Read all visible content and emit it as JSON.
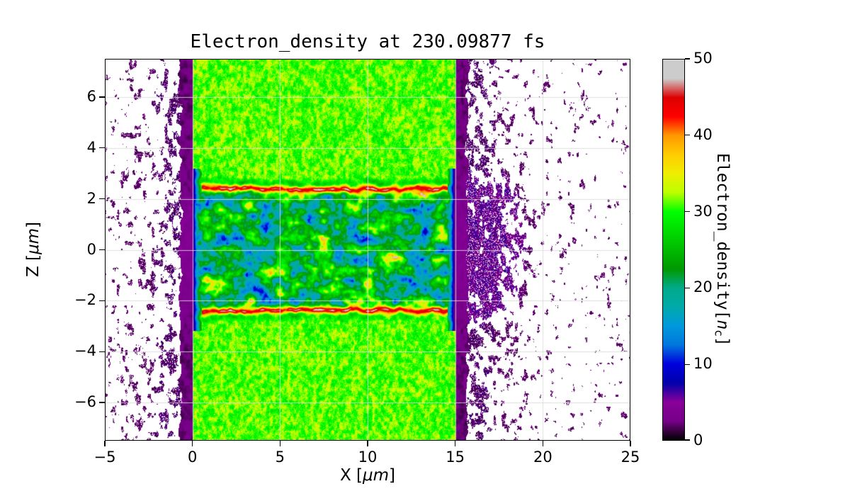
{
  "figure": {
    "title": "Electron_density at 230.09877 fs",
    "xlabel": {
      "pre": "X [",
      "unit": "μm",
      "post": "]"
    },
    "ylabel": {
      "pre": "Z [",
      "unit": "μm",
      "post": "]"
    },
    "xtick_labels": [
      "−5",
      "0",
      "5",
      "10",
      "15",
      "20",
      "25"
    ],
    "ytick_labels": [
      "6",
      "4",
      "2",
      "0",
      "−2",
      "−4",
      "−6"
    ],
    "colorbar_tick_labels": [
      "0",
      "10",
      "20",
      "30",
      "40",
      "50"
    ],
    "colorbar_label": {
      "pre": "Electron_density[",
      "sym": "n",
      "sub": "c",
      "post": "]"
    }
  },
  "chart_data": {
    "type": "heatmap",
    "title": "Electron_density at 230.09877 fs",
    "xlabel": "X [μm]",
    "ylabel": "Z [μm]",
    "xlim": [
      -5,
      25
    ],
    "ylim": [
      -7.5,
      7.5
    ],
    "xticks": [
      -5,
      0,
      5,
      10,
      15,
      20,
      25
    ],
    "yticks": [
      6,
      4,
      2,
      0,
      -2,
      -4,
      -6
    ],
    "grid": true,
    "grid_color": "#d9d9d9",
    "colorbar": {
      "label": "Electron_density[n_c]",
      "ticks": [
        0,
        10,
        20,
        30,
        40,
        50
      ],
      "vmin": 0,
      "vmax": 50
    },
    "colormap": {
      "name": "nipy_spectral (approx)",
      "stops": [
        [
          0,
          "#000000"
        ],
        [
          0.05,
          "#770088"
        ],
        [
          0.1,
          "#880099"
        ],
        [
          0.15,
          "#0000aa"
        ],
        [
          0.2,
          "#0000dd"
        ],
        [
          0.25,
          "#0077dd"
        ],
        [
          0.3,
          "#0099dd"
        ],
        [
          0.35,
          "#00aaaa"
        ],
        [
          0.4,
          "#00aa88"
        ],
        [
          0.45,
          "#009900"
        ],
        [
          0.5,
          "#00bb00"
        ],
        [
          0.55,
          "#00dd00"
        ],
        [
          0.6,
          "#00ff00"
        ],
        [
          0.65,
          "#bbff00"
        ],
        [
          0.7,
          "#eeee00"
        ],
        [
          0.75,
          "#ffcc00"
        ],
        [
          0.8,
          "#ff9900"
        ],
        [
          0.85,
          "#ff0000"
        ],
        [
          0.9,
          "#dd0000"
        ],
        [
          0.95,
          "#cccccc"
        ],
        [
          1,
          "#cccccc"
        ]
      ]
    },
    "features": {
      "plasma_slab": {
        "x_range": [
          0,
          15
        ],
        "z_range": [
          -7.5,
          7.5
        ],
        "density_nc": [
          24,
          36
        ],
        "description": "Uniform plasma slab ~30 nc: bright green with fine teal/yellow speckle"
      },
      "heated_channel": {
        "x_range": [
          0,
          15
        ],
        "z_range": [
          -2.4,
          2.4
        ],
        "density_nc": [
          8,
          50
        ],
        "description": "Turbulent heated channel: cyan/teal depressions with yellow-red-grey hot filaments elongated along x"
      },
      "boundary_filaments": {
        "x_range": [
          0,
          15
        ],
        "z_abs_range": [
          2.0,
          2.5
        ],
        "density_nc": [
          40,
          50
        ],
        "description": "Thin red/grey compression filaments bounding the channel at z ≈ ±2.2 μm"
      },
      "vacuum_speckle": {
        "x_ranges": [
          [
            -5,
            0
          ],
          [
            15,
            25
          ]
        ],
        "density_nc": [
          0,
          8
        ],
        "description": "Sparse black/purple electron speckle on white vacuum, denser near both slab surfaces, ragged dark band at the surfaces"
      },
      "expansion_cloud": {
        "x_range": [
          15,
          21
        ],
        "z_range": [
          -3.5,
          3.5
        ],
        "density_nc": [
          3,
          8
        ],
        "description": "Diffuse purple expansion cloud with arc-like shells ahead of the rear surface"
      }
    },
    "render_params": {
      "seed": 7,
      "slab_x": [
        0,
        15
      ],
      "slab_density_nc": [
        22,
        36
      ],
      "channel_z_halfwidth": 2.28,
      "filament_density_nc": 41,
      "cloud_center": [
        16.3,
        0
      ],
      "cloud_sigma": [
        2.5,
        2.8
      ]
    }
  }
}
